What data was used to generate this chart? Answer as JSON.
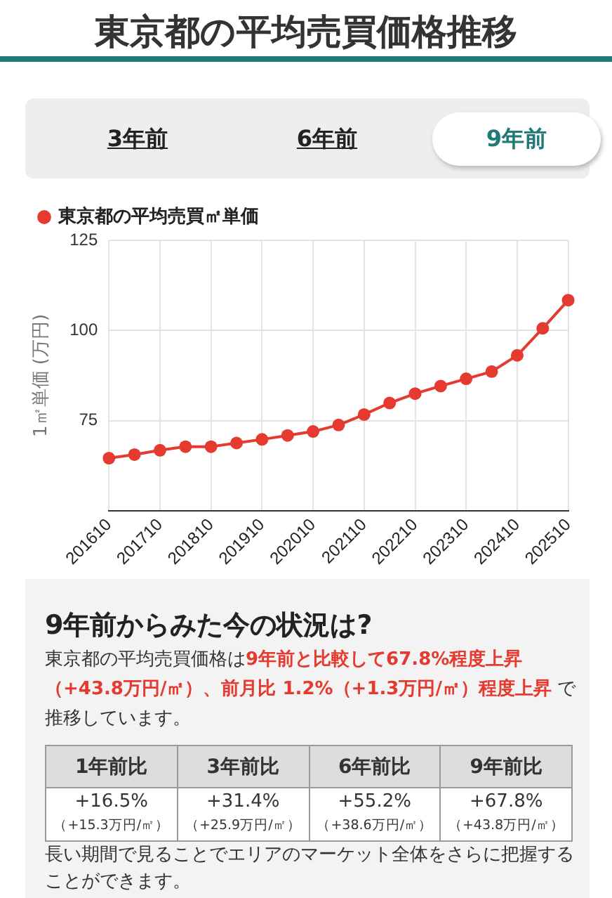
{
  "chart_data": {
    "type": "line",
    "title": "東京都の平均売買価格推移",
    "ylabel": "1㎡単価 (万円)",
    "categories": [
      "201610",
      null,
      "201710",
      null,
      "201810",
      null,
      "201910",
      null,
      "202010",
      null,
      "202110",
      null,
      "202210",
      null,
      "202310",
      null,
      "202410",
      null,
      "202510"
    ],
    "series": [
      {
        "name": "東京都の平均売買㎡単価",
        "color": "#e53a2f",
        "values": [
          64.6,
          65.6,
          66.8,
          67.8,
          67.8,
          68.8,
          69.8,
          70.9,
          72.0,
          73.8,
          76.7,
          79.9,
          82.5,
          84.6,
          86.6,
          88.6,
          93.1,
          100.6,
          108.4
        ]
      }
    ],
    "ylim": [
      50,
      125
    ],
    "yticks": [
      75,
      100,
      125
    ],
    "grid": true,
    "legend": "top left",
    "marker": "circle",
    "line_style": "solid",
    "annotations": [
      "3年前",
      "6年前",
      "9年前",
      "9年前からみた今の状況は?",
      "東京都の平均売買価格は",
      "9年前と比較して67.8%程度上昇（+43.8万円/㎡）、前月比 1.2%（+1.3万円/㎡）程度上昇",
      " で推移しています。",
      "1年前比",
      "3年前比",
      "6年前比",
      "9年前比",
      "+16.5%",
      "+31.4%",
      "+55.2%",
      "+67.8%",
      "（+15.3万円/㎡）",
      "（+25.9万円/㎡）",
      "（+38.6万円/㎡）",
      "（+43.8万円/㎡）",
      "長い期間で見ることでエリアのマーケット全体をさらに把握することができます。"
    ]
  }
}
